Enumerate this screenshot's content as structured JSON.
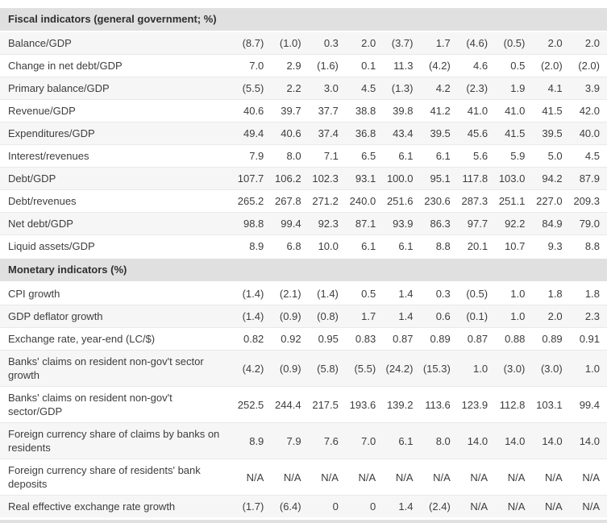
{
  "table": {
    "num_value_columns": 10,
    "colors": {
      "section_header_bg": "#e0e0e0",
      "stripe_bg": "#f6f6f6",
      "row_border": "#e9e9e9",
      "text": "#3d3d3d"
    },
    "sections": [
      {
        "header": "Fiscal indicators (general government; %)",
        "rows": [
          {
            "label": "Balance/GDP",
            "values": [
              "(8.7)",
              "(1.0)",
              "0.3",
              "2.0",
              "(3.7)",
              "1.7",
              "(4.6)",
              "(0.5)",
              "2.0",
              "2.0"
            ]
          },
          {
            "label": "Change in net debt/GDP",
            "values": [
              "7.0",
              "2.9",
              "(1.6)",
              "0.1",
              "11.3",
              "(4.2)",
              "4.6",
              "0.5",
              "(2.0)",
              "(2.0)"
            ]
          },
          {
            "label": "Primary balance/GDP",
            "values": [
              "(5.5)",
              "2.2",
              "3.0",
              "4.5",
              "(1.3)",
              "4.2",
              "(2.3)",
              "1.9",
              "4.1",
              "3.9"
            ]
          },
          {
            "label": "Revenue/GDP",
            "values": [
              "40.6",
              "39.7",
              "37.7",
              "38.8",
              "39.8",
              "41.2",
              "41.0",
              "41.0",
              "41.5",
              "42.0"
            ]
          },
          {
            "label": "Expenditures/GDP",
            "values": [
              "49.4",
              "40.6",
              "37.4",
              "36.8",
              "43.4",
              "39.5",
              "45.6",
              "41.5",
              "39.5",
              "40.0"
            ]
          },
          {
            "label": "Interest/revenues",
            "values": [
              "7.9",
              "8.0",
              "7.1",
              "6.5",
              "6.1",
              "6.1",
              "5.6",
              "5.9",
              "5.0",
              "4.5"
            ]
          },
          {
            "label": "Debt/GDP",
            "values": [
              "107.7",
              "106.2",
              "102.3",
              "93.1",
              "100.0",
              "95.1",
              "117.8",
              "103.0",
              "94.2",
              "87.9"
            ]
          },
          {
            "label": "Debt/revenues",
            "values": [
              "265.2",
              "267.8",
              "271.2",
              "240.0",
              "251.6",
              "230.6",
              "287.3",
              "251.1",
              "227.0",
              "209.3"
            ]
          },
          {
            "label": "Net debt/GDP",
            "values": [
              "98.8",
              "99.4",
              "92.3",
              "87.1",
              "93.9",
              "86.3",
              "97.7",
              "92.2",
              "84.9",
              "79.0"
            ]
          },
          {
            "label": "Liquid assets/GDP",
            "values": [
              "8.9",
              "6.8",
              "10.0",
              "6.1",
              "6.1",
              "8.8",
              "20.1",
              "10.7",
              "9.3",
              "8.8"
            ]
          }
        ]
      },
      {
        "header": "Monetary indicators (%)",
        "rows": [
          {
            "label": "CPI growth",
            "values": [
              "(1.4)",
              "(2.1)",
              "(1.4)",
              "0.5",
              "1.4",
              "0.3",
              "(0.5)",
              "1.0",
              "1.8",
              "1.8"
            ]
          },
          {
            "label": "GDP deflator growth",
            "values": [
              "(1.4)",
              "(0.9)",
              "(0.8)",
              "1.7",
              "1.4",
              "0.6",
              "(0.1)",
              "1.0",
              "2.0",
              "2.3"
            ]
          },
          {
            "label": "Exchange rate, year-end (LC/$)",
            "values": [
              "0.82",
              "0.92",
              "0.95",
              "0.83",
              "0.87",
              "0.89",
              "0.87",
              "0.88",
              "0.89",
              "0.91"
            ]
          },
          {
            "label": "Banks' claims on resident non-gov't sector growth",
            "values": [
              "(4.2)",
              "(0.9)",
              "(5.8)",
              "(5.5)",
              "(24.2)",
              "(15.3)",
              "1.0",
              "(3.0)",
              "(3.0)",
              "1.0"
            ]
          },
          {
            "label": "Banks' claims on resident non-gov't sector/GDP",
            "values": [
              "252.5",
              "244.4",
              "217.5",
              "193.6",
              "139.2",
              "113.6",
              "123.9",
              "112.8",
              "103.1",
              "99.4"
            ]
          },
          {
            "label": "Foreign currency share of claims by banks on residents",
            "values": [
              "8.9",
              "7.9",
              "7.6",
              "7.0",
              "6.1",
              "8.0",
              "14.0",
              "14.0",
              "14.0",
              "14.0"
            ]
          },
          {
            "label": "Foreign currency share of residents' bank deposits",
            "values": [
              "N/A",
              "N/A",
              "N/A",
              "N/A",
              "N/A",
              "N/A",
              "N/A",
              "N/A",
              "N/A",
              "N/A"
            ]
          },
          {
            "label": "Real effective exchange rate growth",
            "values": [
              "(1.7)",
              "(6.4)",
              "0",
              "0",
              "1.4",
              "(2.4)",
              "N/A",
              "N/A",
              "N/A",
              "N/A"
            ]
          }
        ]
      }
    ]
  }
}
